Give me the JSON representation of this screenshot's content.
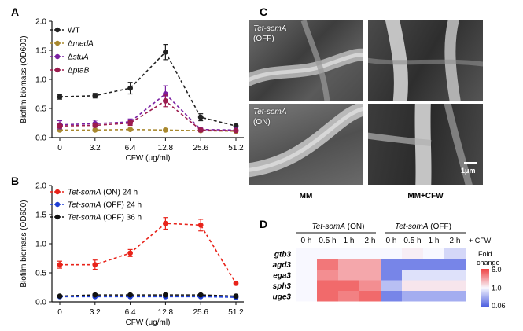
{
  "chart_data": [
    {
      "panel": "A",
      "type": "line",
      "xlabel": "CFW (μg/ml)",
      "ylabel": "Biofilm biomass (OD600)",
      "categories": [
        "0",
        "3.2",
        "6.4",
        "12.8",
        "25.6",
        "51.2"
      ],
      "ylim": [
        0.0,
        2.0
      ],
      "yticks": [
        "0.0",
        "0.5",
        "1.0",
        "1.5",
        "2.0"
      ],
      "legend_position": "top-left",
      "series": [
        {
          "name": "WT",
          "prefix": "",
          "italic": "",
          "color": "#222222",
          "values": [
            0.7,
            0.72,
            0.85,
            1.47,
            0.35,
            0.2
          ],
          "errors": [
            0.04,
            0.04,
            0.1,
            0.13,
            0.06,
            0.03
          ]
        },
        {
          "name": "ΔmedA",
          "prefix": "Δ",
          "italic": "medA",
          "color": "#a8882e",
          "values": [
            0.13,
            0.13,
            0.14,
            0.13,
            0.12,
            0.11
          ],
          "errors": [
            0.02,
            0.02,
            0.02,
            0.02,
            0.02,
            0.02
          ]
        },
        {
          "name": "ΔstuA",
          "prefix": "Δ",
          "italic": "stuA",
          "color": "#7a1fa2",
          "values": [
            0.22,
            0.24,
            0.27,
            0.75,
            0.14,
            0.13
          ],
          "errors": [
            0.07,
            0.06,
            0.05,
            0.14,
            0.04,
            0.03
          ]
        },
        {
          "name": "ΔptaB",
          "prefix": "Δ",
          "italic": "ptaB",
          "color": "#9c1c4e",
          "values": [
            0.2,
            0.21,
            0.25,
            0.63,
            0.13,
            0.12
          ],
          "errors": [
            0.03,
            0.03,
            0.04,
            0.1,
            0.03,
            0.02
          ]
        }
      ]
    },
    {
      "panel": "B",
      "type": "line",
      "xlabel": "CFW (μg/ml)",
      "ylabel": "Biofilm biomass (OD600)",
      "categories": [
        "0",
        "3.2",
        "6.4",
        "12.8",
        "25.6",
        "51.2"
      ],
      "ylim": [
        0.0,
        2.0
      ],
      "yticks": [
        "0.0",
        "0.5",
        "1.0",
        "1.5",
        "2.0"
      ],
      "legend_position": "top-left",
      "series": [
        {
          "name": "Tet-somA (ON) 24 h",
          "italic": "Tet-somA",
          "suffix": " (ON)  24 h",
          "color": "#e8231a",
          "values": [
            0.64,
            0.64,
            0.84,
            1.35,
            1.32,
            0.32
          ],
          "errors": [
            0.06,
            0.08,
            0.06,
            0.1,
            0.1,
            0.02
          ]
        },
        {
          "name": "Tet-somA (OFF) 24 h",
          "italic": "Tet-somA",
          "suffix": " (OFF) 24 h",
          "color": "#1f3fd6",
          "values": [
            0.09,
            0.09,
            0.09,
            0.09,
            0.09,
            0.08
          ],
          "errors": [
            0.01,
            0.01,
            0.01,
            0.01,
            0.01,
            0.01
          ]
        },
        {
          "name": "Tet-somA (OFF) 36 h",
          "italic": "Tet-somA",
          "suffix": " (OFF) 36 h",
          "color": "#111111",
          "values": [
            0.1,
            0.12,
            0.12,
            0.12,
            0.12,
            0.1
          ],
          "errors": [
            0.01,
            0.02,
            0.02,
            0.02,
            0.02,
            0.01
          ]
        }
      ]
    },
    {
      "panel": "D",
      "type": "heatmap",
      "group_labels": [
        {
          "italic": "Tet-somA",
          "suffix": " (ON)"
        },
        {
          "italic": "Tet-somA",
          "suffix": " (OFF)"
        }
      ],
      "columns": [
        "0 h",
        "0.5 h",
        "1 h",
        "2 h",
        "0 h",
        "0.5 h",
        "1 h",
        "2 h"
      ],
      "column_suffix": "+ CFW",
      "rows": [
        "gtb3",
        "agd3",
        "ega3",
        "sph3",
        "uge3"
      ],
      "values": [
        [
          1.0,
          1.0,
          1.0,
          1.0,
          1.0,
          1.1,
          1.0,
          0.55
        ],
        [
          1.0,
          3.5,
          2.2,
          2.2,
          0.12,
          0.12,
          0.12,
          0.12
        ],
        [
          1.0,
          2.8,
          2.2,
          2.2,
          0.12,
          0.65,
          0.65,
          0.65
        ],
        [
          1.0,
          4.0,
          4.0,
          2.8,
          0.35,
          1.2,
          1.2,
          1.2
        ],
        [
          1.0,
          4.0,
          3.2,
          4.0,
          0.12,
          0.25,
          0.25,
          0.25
        ]
      ],
      "colorbar": {
        "title": "Fold change",
        "ticks": [
          "6.0",
          "1.0",
          "0.06"
        ],
        "low_color": "#4d5fe0",
        "mid_color": "#f8f8ff",
        "high_color": "#ef4040"
      }
    }
  ],
  "panel_labels": {
    "A": "A",
    "B": "B",
    "C": "C",
    "D": "D"
  },
  "sem_panel": {
    "labels": [
      {
        "italic": "Tet-somA",
        "sub": "(OFF)"
      },
      {
        "italic": "Tet-somA",
        "sub": "(ON)"
      }
    ],
    "column_labels": [
      "MM",
      "MM+CFW"
    ],
    "scale_bar": "1μm"
  }
}
